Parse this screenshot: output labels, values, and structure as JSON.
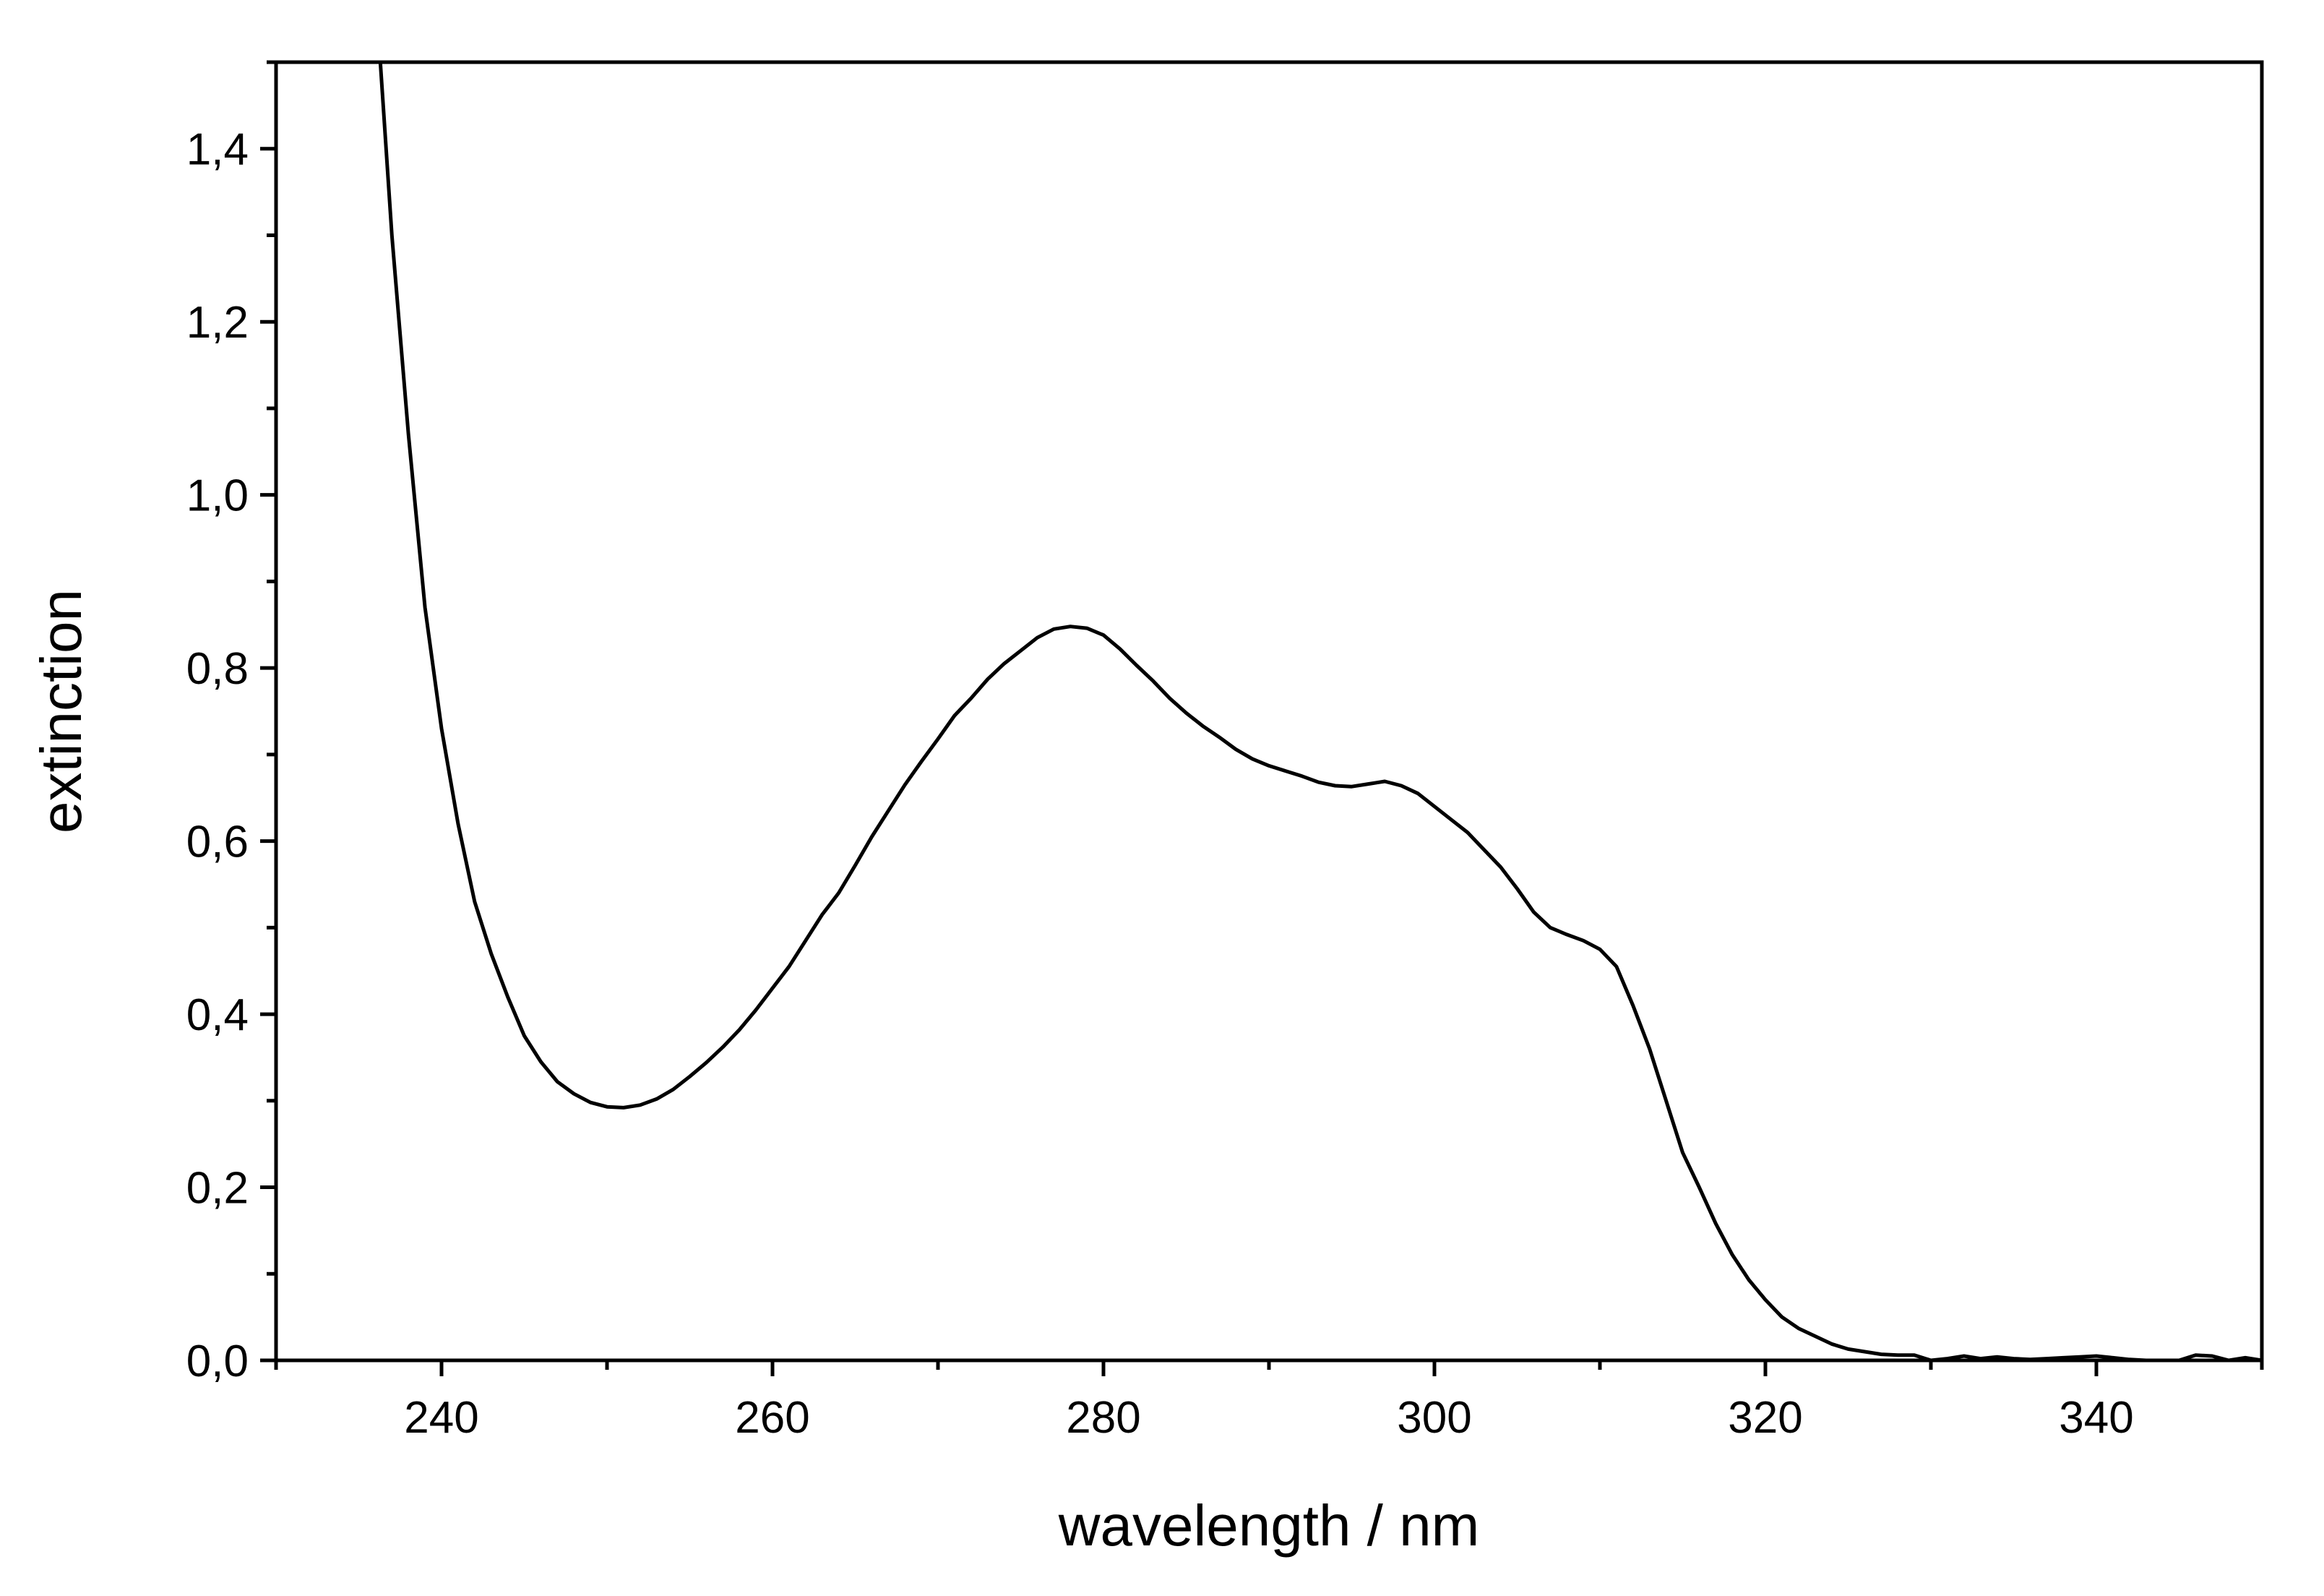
{
  "chart_data": {
    "type": "line",
    "title": "",
    "xlabel": "wavelength / nm",
    "ylabel": "extinction",
    "xlim": [
      230,
      350
    ],
    "ylim": [
      0,
      1.5
    ],
    "grid": false,
    "legend": "none",
    "x_major_ticks": [
      240,
      260,
      280,
      300,
      320,
      340
    ],
    "x_tick_labels": [
      "240",
      "260",
      "280",
      "300",
      "320",
      "340"
    ],
    "x_minor_ticks": [
      230,
      250,
      270,
      290,
      310,
      330,
      350
    ],
    "y_major_ticks": [
      0,
      0.2,
      0.4,
      0.6,
      0.8,
      1.0,
      1.2,
      1.4
    ],
    "y_tick_labels": [
      "0,0",
      "0,2",
      "0,4",
      "0,6",
      "0,8",
      "1,0",
      "1,2",
      "1,4"
    ],
    "y_minor_ticks": [
      0.1,
      0.3,
      0.5,
      0.7,
      0.9,
      1.1,
      1.3,
      1.5
    ],
    "series": [
      {
        "name": "extinction",
        "color": "#000000",
        "x": [
          236.3,
          237,
          238,
          239,
          240,
          241,
          242,
          243,
          244,
          245,
          246,
          247,
          248,
          249,
          250,
          251,
          252,
          253,
          254,
          255,
          256,
          257,
          258,
          259,
          260,
          261,
          262,
          263,
          264,
          265,
          266,
          267,
          268,
          269,
          270,
          271,
          272,
          273,
          274,
          275,
          276,
          277,
          278,
          279,
          280,
          281,
          282,
          283,
          284,
          285,
          286,
          287,
          288,
          289,
          290,
          291,
          292,
          293,
          294,
          295,
          296,
          297,
          298,
          299,
          300,
          301,
          302,
          303,
          304,
          305,
          306,
          307,
          308,
          309,
          310,
          311,
          312,
          313,
          314,
          315,
          316,
          317,
          318,
          319,
          320,
          321,
          322,
          323,
          324,
          325,
          326,
          327,
          328,
          329,
          330,
          331,
          332,
          333,
          334,
          335,
          336,
          337,
          338,
          339,
          340,
          341,
          342,
          343,
          344,
          345,
          346,
          347,
          348,
          349,
          350
        ],
        "y": [
          1.5,
          1.3,
          1.07,
          0.87,
          0.73,
          0.62,
          0.53,
          0.47,
          0.42,
          0.375,
          0.345,
          0.322,
          0.308,
          0.298,
          0.293,
          0.292,
          0.295,
          0.302,
          0.313,
          0.328,
          0.344,
          0.362,
          0.382,
          0.405,
          0.43,
          0.455,
          0.485,
          0.515,
          0.54,
          0.572,
          0.605,
          0.635,
          0.665,
          0.692,
          0.718,
          0.745,
          0.765,
          0.787,
          0.805,
          0.82,
          0.835,
          0.845,
          0.848,
          0.846,
          0.838,
          0.822,
          0.803,
          0.785,
          0.765,
          0.748,
          0.733,
          0.72,
          0.706,
          0.695,
          0.687,
          0.681,
          0.675,
          0.668,
          0.664,
          0.663,
          0.666,
          0.669,
          0.664,
          0.655,
          0.64,
          0.625,
          0.61,
          0.59,
          0.57,
          0.545,
          0.518,
          0.5,
          0.492,
          0.485,
          0.475,
          0.455,
          0.41,
          0.36,
          0.3,
          0.24,
          0.2,
          0.158,
          0.122,
          0.093,
          0.07,
          0.05,
          0.037,
          0.028,
          0.019,
          0.013,
          0.01,
          0.007,
          0.006,
          0.006,
          0.0,
          0.002,
          0.005,
          0.002,
          0.004,
          0.002,
          0.001,
          0.002,
          0.003,
          0.004,
          0.005,
          0.003,
          0.001,
          0.0,
          0.0,
          0.0,
          0.006,
          0.005,
          0.0,
          0.003,
          0.0
        ]
      }
    ]
  }
}
